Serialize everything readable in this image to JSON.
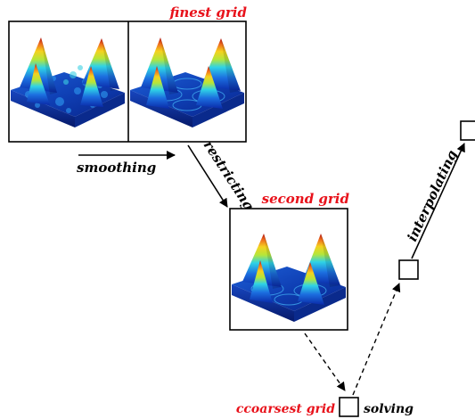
{
  "labels": {
    "finest_grid": "finest grid",
    "smoothing": "smoothing",
    "restricting": "restricting",
    "second_grid": "second grid",
    "coarsest_grid": "ccoarsest grid",
    "solving": "solving",
    "interpolating": "interpolating"
  },
  "colors": {
    "grid_label": "#e8121b",
    "text": "#000000"
  },
  "icons": {
    "noisy_surface": "noisy-surface-plot-icon",
    "smooth_surface": "smooth-surface-plot-icon",
    "coarse_surface": "coarse-surface-plot-icon"
  }
}
